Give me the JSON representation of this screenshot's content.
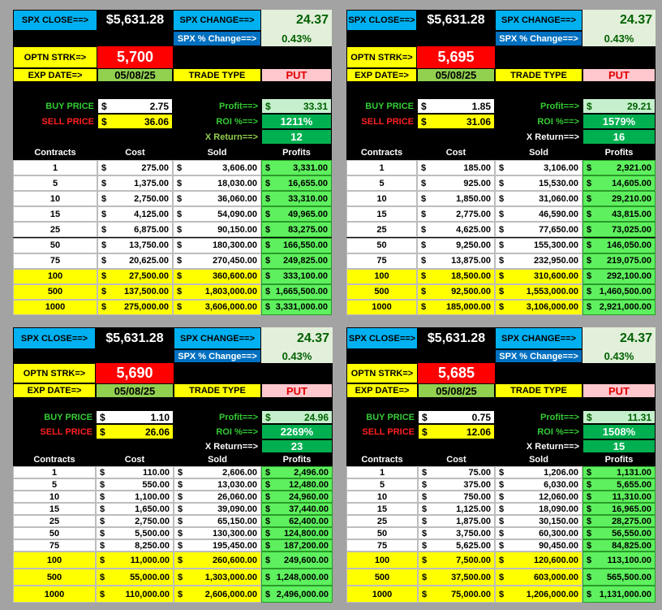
{
  "currency": "$",
  "labels": {
    "spx_close": "SPX CLOSE==>",
    "spx_change": "SPX CHANGE==>",
    "pct_change": "SPX % Change==>",
    "strike": "OPTN STRK=>",
    "exp_date": "EXP DATE=>",
    "trade_type": "TRADE TYPE",
    "buy_price": "BUY PRICE",
    "sell_price": "SELL PRICE",
    "profit": "Profit==>",
    "roi": "ROI %==>",
    "x_return": "X Return==>"
  },
  "table_header": [
    "Contracts",
    "Cost",
    "Sold",
    "Profits"
  ],
  "panels": [
    {
      "spx_close": "$5,631.28",
      "spx_change": "24.37",
      "pct_change": "0.43%",
      "strike": "5,700",
      "exp_date": "05/08/25",
      "trade_type": "PUT",
      "buy_price": "2.75",
      "sell_price": "36.06",
      "profit": "33.31",
      "roi": "1211%",
      "x_return": "12",
      "rows": [
        [
          "1",
          "275.00",
          "3,606.00",
          "3,331.00"
        ],
        [
          "5",
          "1,375.00",
          "18,030.00",
          "16,655.00"
        ],
        [
          "10",
          "2,750.00",
          "36,060.00",
          "33,310.00"
        ],
        [
          "15",
          "4,125.00",
          "54,090.00",
          "49,965.00"
        ],
        [
          "25",
          "6,875.00",
          "90,150.00",
          "83,275.00"
        ],
        [
          "50",
          "13,750.00",
          "180,300.00",
          "166,550.00"
        ],
        [
          "75",
          "20,625.00",
          "270,450.00",
          "249,825.00"
        ],
        [
          "100",
          "27,500.00",
          "360,600.00",
          "333,100.00"
        ],
        [
          "500",
          "137,500.00",
          "1,803,000.00",
          "1,665,500.00"
        ],
        [
          "1000",
          "275,000.00",
          "3,606,000.00",
          "3,331,000.00"
        ]
      ]
    },
    {
      "spx_close": "$5,631.28",
      "spx_change": "24.37",
      "pct_change": "0.43%",
      "strike": "5,695",
      "exp_date": "05/08/25",
      "trade_type": "PUT",
      "buy_price": "1.85",
      "sell_price": "31.06",
      "profit": "29.21",
      "roi": "1579%",
      "x_return": "16",
      "rows": [
        [
          "1",
          "185.00",
          "3,106.00",
          "2,921.00"
        ],
        [
          "5",
          "925.00",
          "15,530.00",
          "14,605.00"
        ],
        [
          "10",
          "1,850.00",
          "31,060.00",
          "29,210.00"
        ],
        [
          "15",
          "2,775.00",
          "46,590.00",
          "43,815.00"
        ],
        [
          "25",
          "4,625.00",
          "77,650.00",
          "73,025.00"
        ],
        [
          "50",
          "9,250.00",
          "155,300.00",
          "146,050.00"
        ],
        [
          "75",
          "13,875.00",
          "232,950.00",
          "219,075.00"
        ],
        [
          "100",
          "18,500.00",
          "310,600.00",
          "292,100.00"
        ],
        [
          "500",
          "92,500.00",
          "1,553,000.00",
          "1,460,500.00"
        ],
        [
          "1000",
          "185,000.00",
          "3,106,000.00",
          "2,921,000.00"
        ]
      ]
    },
    {
      "spx_close": "$5,631.28",
      "spx_change": "24.37",
      "pct_change": "0.43%",
      "strike": "5,690",
      "exp_date": "05/08/25",
      "trade_type": "PUT",
      "buy_price": "1.10",
      "sell_price": "26.06",
      "profit": "24.96",
      "roi": "2269%",
      "x_return": "23",
      "rows": [
        [
          "1",
          "110.00",
          "2,606.00",
          "2,496.00"
        ],
        [
          "5",
          "550.00",
          "13,030.00",
          "12,480.00"
        ],
        [
          "10",
          "1,100.00",
          "26,060.00",
          "24,960.00"
        ],
        [
          "15",
          "1,650.00",
          "39,090.00",
          "37,440.00"
        ],
        [
          "25",
          "2,750.00",
          "65,150.00",
          "62,400.00"
        ],
        [
          "50",
          "5,500.00",
          "130,300.00",
          "124,800.00"
        ],
        [
          "75",
          "8,250.00",
          "195,450.00",
          "187,200.00"
        ],
        [
          "100",
          "11,000.00",
          "260,600.00",
          "249,600.00"
        ],
        [
          "500",
          "55,000.00",
          "1,303,000.00",
          "1,248,000.00"
        ],
        [
          "1000",
          "110,000.00",
          "2,606,000.00",
          "2,496,000.00"
        ]
      ]
    },
    {
      "spx_close": "$5,631.28",
      "spx_change": "24.37",
      "pct_change": "0.43%",
      "strike": "5,685",
      "exp_date": "05/08/25",
      "trade_type": "PUT",
      "buy_price": "0.75",
      "sell_price": "12.06",
      "profit": "11.31",
      "roi": "1508%",
      "x_return": "15",
      "rows": [
        [
          "1",
          "75.00",
          "1,206.00",
          "1,131.00"
        ],
        [
          "5",
          "375.00",
          "6,030.00",
          "5,655.00"
        ],
        [
          "10",
          "750.00",
          "12,060.00",
          "11,310.00"
        ],
        [
          "15",
          "1,125.00",
          "18,090.00",
          "16,965.00"
        ],
        [
          "25",
          "1,875.00",
          "30,150.00",
          "28,275.00"
        ],
        [
          "50",
          "3,750.00",
          "60,300.00",
          "56,550.00"
        ],
        [
          "75",
          "5,625.00",
          "90,450.00",
          "84,825.00"
        ],
        [
          "100",
          "7,500.00",
          "120,600.00",
          "113,100.00"
        ],
        [
          "500",
          "37,500.00",
          "603,000.00",
          "565,500.00"
        ],
        [
          "1000",
          "75,000.00",
          "1,206,000.00",
          "1,131,000.00"
        ]
      ]
    }
  ]
}
